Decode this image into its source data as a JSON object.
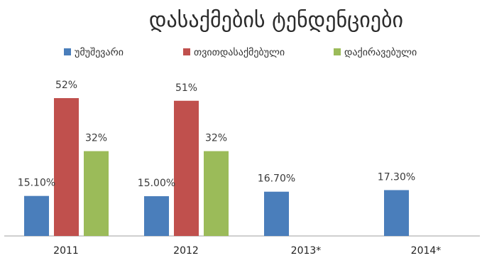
{
  "chart_data": {
    "type": "bar",
    "title": "დასაქმების ტენდენციები",
    "categories": [
      "2011",
      "2012",
      "2013*",
      "2014*"
    ],
    "series": [
      {
        "name": "უმუშევარი",
        "color": "#4a7ebb",
        "values": [
          15.1,
          15.0,
          16.7,
          17.3
        ],
        "labels": [
          "15.10%",
          "15.00%",
          "16.70%",
          "17.30%"
        ]
      },
      {
        "name": "თვითდასაქმებული",
        "color": "#c0504d",
        "values": [
          52,
          51,
          null,
          null
        ],
        "labels": [
          "52%",
          "51%",
          "",
          ""
        ]
      },
      {
        "name": "დაქირავებული",
        "color": "#9bbb59",
        "values": [
          32,
          32,
          null,
          null
        ],
        "labels": [
          "32%",
          "32%",
          "",
          ""
        ]
      }
    ],
    "ylim": [
      0,
      55
    ],
    "grid": false,
    "legend_position": "top"
  }
}
